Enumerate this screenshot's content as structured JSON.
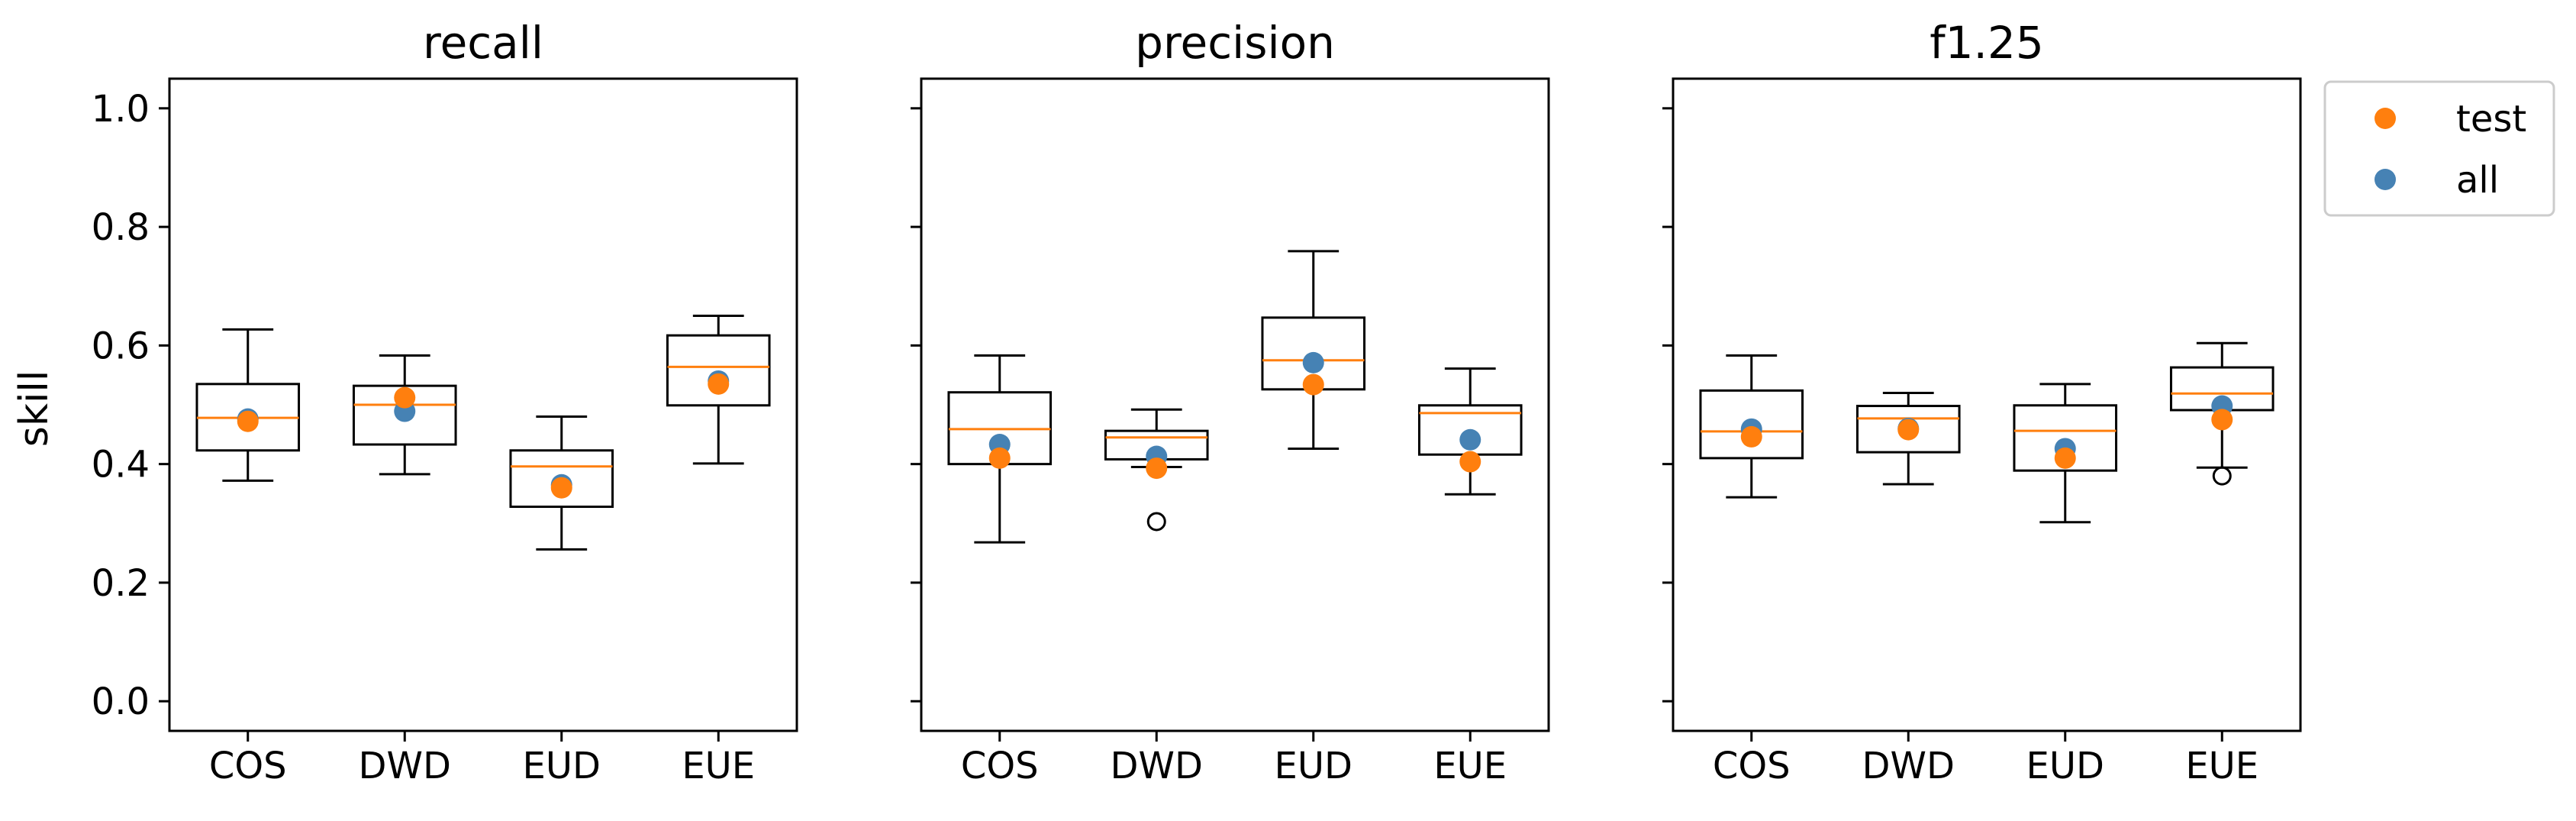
{
  "chart_data": {
    "type": "box",
    "ylabel": "skill",
    "ylim": [
      -0.05,
      1.05
    ],
    "yticks": [
      0.0,
      0.2,
      0.4,
      0.6,
      0.8,
      1.0
    ],
    "ytick_labels": [
      "0.0",
      "0.2",
      "0.4",
      "0.6",
      "0.8",
      "1.0"
    ],
    "grid": false,
    "legend_position": "outside-top-right",
    "legend": [
      {
        "label": "test",
        "color": "#ff7f0e"
      },
      {
        "label": "all",
        "color": "#4682b4"
      }
    ],
    "colors": {
      "median": "#ff7f0e",
      "test": "#ff7f0e",
      "all": "#4682b4",
      "box": "#000000"
    },
    "categories": [
      "COS",
      "DWD",
      "EUD",
      "EUE"
    ],
    "panels": [
      {
        "title": "recall",
        "boxes": [
          {
            "category": "COS",
            "whisker_low": 0.372,
            "q1": 0.423,
            "median": 0.478,
            "q3": 0.535,
            "whisker_high": 0.627,
            "outliers": [],
            "test": 0.472,
            "all": 0.476
          },
          {
            "category": "DWD",
            "whisker_low": 0.383,
            "q1": 0.433,
            "median": 0.5,
            "q3": 0.532,
            "whisker_high": 0.583,
            "outliers": [],
            "test": 0.512,
            "all": 0.489
          },
          {
            "category": "EUD",
            "whisker_low": 0.256,
            "q1": 0.328,
            "median": 0.396,
            "q3": 0.423,
            "whisker_high": 0.48,
            "outliers": [],
            "test": 0.36,
            "all": 0.365
          },
          {
            "category": "EUE",
            "whisker_low": 0.401,
            "q1": 0.499,
            "median": 0.564,
            "q3": 0.617,
            "whisker_high": 0.65,
            "outliers": [],
            "test": 0.535,
            "all": 0.54
          }
        ]
      },
      {
        "title": "precision",
        "boxes": [
          {
            "category": "COS",
            "whisker_low": 0.268,
            "q1": 0.4,
            "median": 0.459,
            "q3": 0.521,
            "whisker_high": 0.583,
            "outliers": [],
            "test": 0.41,
            "all": 0.433
          },
          {
            "category": "DWD",
            "whisker_low": 0.395,
            "q1": 0.408,
            "median": 0.445,
            "q3": 0.456,
            "whisker_high": 0.492,
            "outliers": [
              0.303
            ],
            "test": 0.393,
            "all": 0.413
          },
          {
            "category": "EUD",
            "whisker_low": 0.426,
            "q1": 0.526,
            "median": 0.575,
            "q3": 0.647,
            "whisker_high": 0.759,
            "outliers": [],
            "test": 0.534,
            "all": 0.571
          },
          {
            "category": "EUE",
            "whisker_low": 0.349,
            "q1": 0.416,
            "median": 0.486,
            "q3": 0.499,
            "whisker_high": 0.561,
            "outliers": [],
            "test": 0.404,
            "all": 0.441
          }
        ]
      },
      {
        "title": "f1.25",
        "boxes": [
          {
            "category": "COS",
            "whisker_low": 0.344,
            "q1": 0.41,
            "median": 0.455,
            "q3": 0.524,
            "whisker_high": 0.583,
            "outliers": [],
            "test": 0.446,
            "all": 0.459
          },
          {
            "category": "DWD",
            "whisker_low": 0.366,
            "q1": 0.42,
            "median": 0.477,
            "q3": 0.498,
            "whisker_high": 0.52,
            "outliers": [],
            "test": 0.458,
            "all": 0.46
          },
          {
            "category": "EUD",
            "whisker_low": 0.302,
            "q1": 0.389,
            "median": 0.456,
            "q3": 0.499,
            "whisker_high": 0.535,
            "outliers": [],
            "test": 0.41,
            "all": 0.426
          },
          {
            "category": "EUE",
            "whisker_low": 0.394,
            "q1": 0.491,
            "median": 0.519,
            "q3": 0.563,
            "whisker_high": 0.604,
            "outliers": [
              0.38
            ],
            "test": 0.475,
            "all": 0.498
          }
        ]
      }
    ]
  }
}
